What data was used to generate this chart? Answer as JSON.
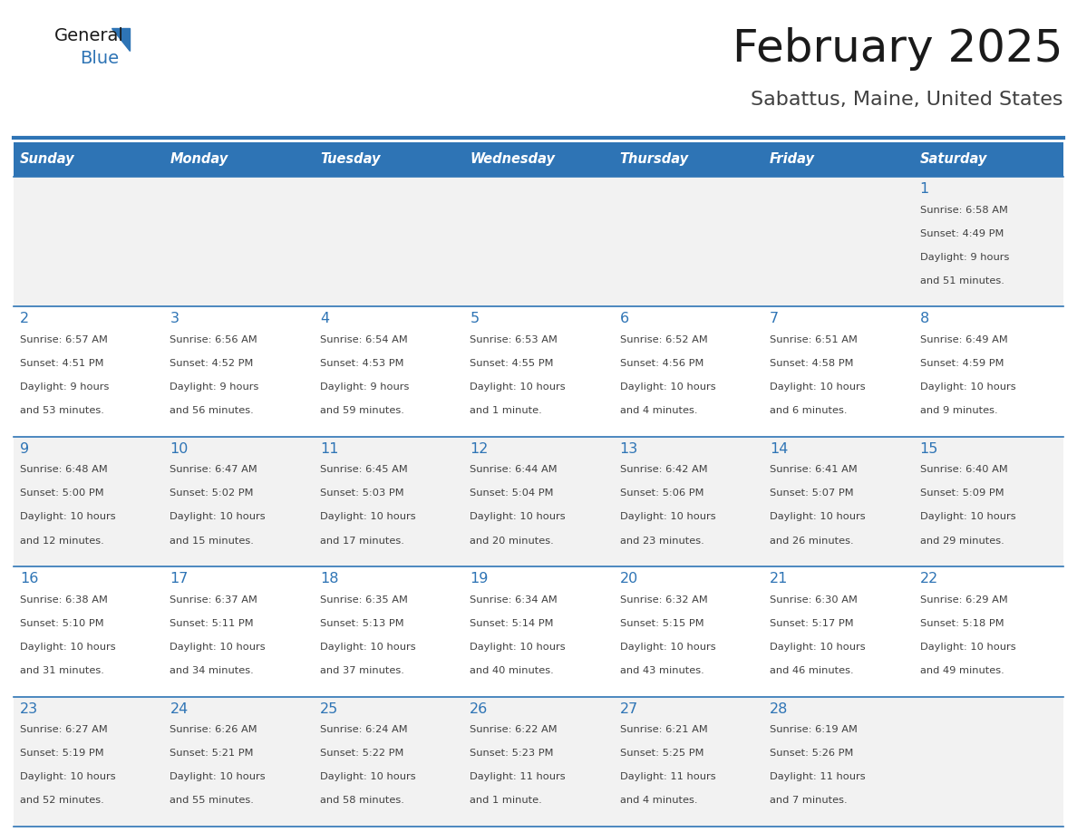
{
  "title": "February 2025",
  "subtitle": "Sabattus, Maine, United States",
  "days_of_week": [
    "Sunday",
    "Monday",
    "Tuesday",
    "Wednesday",
    "Thursday",
    "Friday",
    "Saturday"
  ],
  "header_bg": "#2e74b5",
  "header_text": "#ffffff",
  "row_bg_odd": "#f2f2f2",
  "row_bg_even": "#ffffff",
  "cell_border": "#2e74b5",
  "day_number_color": "#2e74b5",
  "info_text_color": "#404040",
  "title_color": "#1a1a1a",
  "subtitle_color": "#404040",
  "logo_general_color": "#1a1a1a",
  "logo_blue_color": "#2e74b5",
  "weeks": [
    [
      null,
      null,
      null,
      null,
      null,
      null,
      1
    ],
    [
      2,
      3,
      4,
      5,
      6,
      7,
      8
    ],
    [
      9,
      10,
      11,
      12,
      13,
      14,
      15
    ],
    [
      16,
      17,
      18,
      19,
      20,
      21,
      22
    ],
    [
      23,
      24,
      25,
      26,
      27,
      28,
      null
    ]
  ],
  "day_data": {
    "1": {
      "sunrise": "6:58 AM",
      "sunset": "4:49 PM",
      "daylight": "9 hours and 51 minutes."
    },
    "2": {
      "sunrise": "6:57 AM",
      "sunset": "4:51 PM",
      "daylight": "9 hours and 53 minutes."
    },
    "3": {
      "sunrise": "6:56 AM",
      "sunset": "4:52 PM",
      "daylight": "9 hours and 56 minutes."
    },
    "4": {
      "sunrise": "6:54 AM",
      "sunset": "4:53 PM",
      "daylight": "9 hours and 59 minutes."
    },
    "5": {
      "sunrise": "6:53 AM",
      "sunset": "4:55 PM",
      "daylight": "10 hours and 1 minute."
    },
    "6": {
      "sunrise": "6:52 AM",
      "sunset": "4:56 PM",
      "daylight": "10 hours and 4 minutes."
    },
    "7": {
      "sunrise": "6:51 AM",
      "sunset": "4:58 PM",
      "daylight": "10 hours and 6 minutes."
    },
    "8": {
      "sunrise": "6:49 AM",
      "sunset": "4:59 PM",
      "daylight": "10 hours and 9 minutes."
    },
    "9": {
      "sunrise": "6:48 AM",
      "sunset": "5:00 PM",
      "daylight": "10 hours and 12 minutes."
    },
    "10": {
      "sunrise": "6:47 AM",
      "sunset": "5:02 PM",
      "daylight": "10 hours and 15 minutes."
    },
    "11": {
      "sunrise": "6:45 AM",
      "sunset": "5:03 PM",
      "daylight": "10 hours and 17 minutes."
    },
    "12": {
      "sunrise": "6:44 AM",
      "sunset": "5:04 PM",
      "daylight": "10 hours and 20 minutes."
    },
    "13": {
      "sunrise": "6:42 AM",
      "sunset": "5:06 PM",
      "daylight": "10 hours and 23 minutes."
    },
    "14": {
      "sunrise": "6:41 AM",
      "sunset": "5:07 PM",
      "daylight": "10 hours and 26 minutes."
    },
    "15": {
      "sunrise": "6:40 AM",
      "sunset": "5:09 PM",
      "daylight": "10 hours and 29 minutes."
    },
    "16": {
      "sunrise": "6:38 AM",
      "sunset": "5:10 PM",
      "daylight": "10 hours and 31 minutes."
    },
    "17": {
      "sunrise": "6:37 AM",
      "sunset": "5:11 PM",
      "daylight": "10 hours and 34 minutes."
    },
    "18": {
      "sunrise": "6:35 AM",
      "sunset": "5:13 PM",
      "daylight": "10 hours and 37 minutes."
    },
    "19": {
      "sunrise": "6:34 AM",
      "sunset": "5:14 PM",
      "daylight": "10 hours and 40 minutes."
    },
    "20": {
      "sunrise": "6:32 AM",
      "sunset": "5:15 PM",
      "daylight": "10 hours and 43 minutes."
    },
    "21": {
      "sunrise": "6:30 AM",
      "sunset": "5:17 PM",
      "daylight": "10 hours and 46 minutes."
    },
    "22": {
      "sunrise": "6:29 AM",
      "sunset": "5:18 PM",
      "daylight": "10 hours and 49 minutes."
    },
    "23": {
      "sunrise": "6:27 AM",
      "sunset": "5:19 PM",
      "daylight": "10 hours and 52 minutes."
    },
    "24": {
      "sunrise": "6:26 AM",
      "sunset": "5:21 PM",
      "daylight": "10 hours and 55 minutes."
    },
    "25": {
      "sunrise": "6:24 AM",
      "sunset": "5:22 PM",
      "daylight": "10 hours and 58 minutes."
    },
    "26": {
      "sunrise": "6:22 AM",
      "sunset": "5:23 PM",
      "daylight": "11 hours and 1 minute."
    },
    "27": {
      "sunrise": "6:21 AM",
      "sunset": "5:25 PM",
      "daylight": "11 hours and 4 minutes."
    },
    "28": {
      "sunrise": "6:19 AM",
      "sunset": "5:26 PM",
      "daylight": "11 hours and 7 minutes."
    }
  }
}
